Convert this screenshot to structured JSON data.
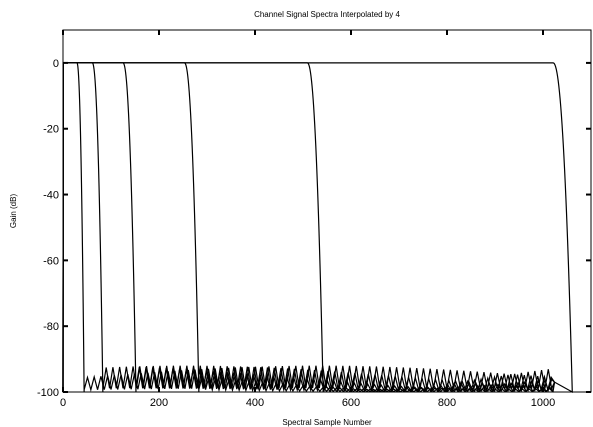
{
  "chart_data": {
    "type": "line",
    "title": "Channel Signal Spectra Interpolated by 4",
    "xlabel": "Spectral Sample Number",
    "ylabel": "Gain (dB)",
    "xlim": [
      0,
      1100
    ],
    "ylim": [
      -100,
      10
    ],
    "x_ticks": [
      "0",
      "200",
      "400",
      "600",
      "800",
      "1000"
    ],
    "y_ticks": [
      "0",
      "-20",
      "-40",
      "-60",
      "-80",
      "-100"
    ],
    "grid": false,
    "legend": "none",
    "line_color": "#000000",
    "passband_gain_db": 0,
    "stopband_floor_db": -100,
    "stopband_ripple_top_db": -92,
    "x_end": 1024,
    "series": [
      {
        "passband_edge": 32,
        "rolloff_to_floor": 15
      },
      {
        "passband_edge": 64,
        "rolloff_to_floor": 22
      },
      {
        "passband_edge": 128,
        "rolloff_to_floor": 27
      },
      {
        "passband_edge": 256,
        "rolloff_to_floor": 30
      },
      {
        "passband_edge": 512,
        "rolloff_to_floor": 33
      },
      {
        "passband_edge": 1024,
        "rolloff_to_floor": 40
      }
    ]
  }
}
